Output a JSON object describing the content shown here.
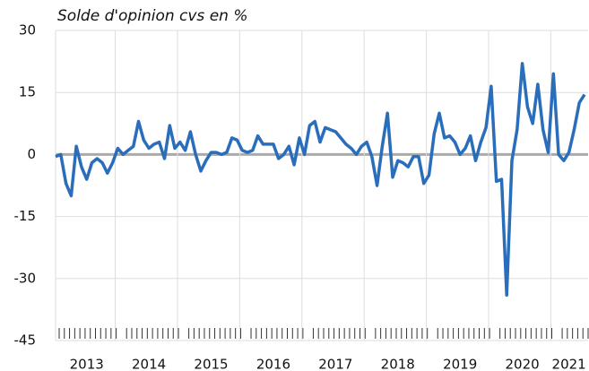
{
  "chart_data": {
    "type": "line",
    "title": "Solde d'opinion cvs en %",
    "categories": [
      null,
      null,
      null,
      null,
      null,
      null,
      "2013",
      null,
      null,
      null,
      null,
      null,
      null,
      null,
      null,
      null,
      null,
      null,
      "2014",
      null,
      null,
      null,
      null,
      null,
      null,
      null,
      null,
      null,
      null,
      null,
      "2015",
      null,
      null,
      null,
      null,
      null,
      null,
      null,
      null,
      null,
      null,
      null,
      "2016",
      null,
      null,
      null,
      null,
      null,
      null,
      null,
      null,
      null,
      null,
      null,
      "2017",
      null,
      null,
      null,
      null,
      null,
      null,
      null,
      null,
      null,
      null,
      null,
      "2018",
      null,
      null,
      null,
      null,
      null,
      null,
      null,
      null,
      null,
      null,
      null,
      "2019",
      null,
      null,
      null,
      null,
      null,
      null,
      null,
      null,
      null,
      null,
      null,
      "2020",
      null,
      null,
      null,
      null,
      null,
      null,
      null,
      null,
      "2021",
      null,
      null,
      null
    ],
    "series": [
      {
        "name": "Solde d'opinion",
        "color": "#2a6ebb",
        "values": [
          -0.5,
          0,
          -7,
          -10,
          2,
          -3,
          -6,
          -2,
          -1,
          -2,
          -4.5,
          -2,
          1.5,
          0,
          1,
          2,
          8,
          3.5,
          1.5,
          2.5,
          3,
          -1,
          7,
          1.5,
          3,
          1,
          5.5,
          0,
          -4,
          -1.5,
          0.5,
          0.5,
          0,
          0.5,
          4,
          3.5,
          1,
          0.5,
          1,
          4.5,
          2.5,
          2.5,
          2.5,
          -1,
          0,
          2,
          -2.5,
          4,
          0,
          7,
          8,
          3,
          6.5,
          6,
          5.5,
          4,
          2.5,
          1.5,
          0,
          2,
          3,
          -0.5,
          -7.5,
          2,
          10,
          -5.5,
          -1.5,
          -2,
          -3,
          -0.5,
          -0.5,
          -7,
          -5,
          5,
          10,
          4,
          4.5,
          3,
          0,
          1.5,
          4.5,
          -1.5,
          3,
          6.5,
          16.5,
          -6.5,
          -6,
          -34,
          -1.5,
          6,
          22,
          11.5,
          7.5,
          17,
          6,
          0.5,
          19.5,
          0,
          -1.5,
          0.5,
          6,
          12.5,
          14.5
        ]
      }
    ],
    "ylim": [
      -45,
      30
    ],
    "yticks": [
      -45,
      -30,
      -15,
      0,
      15,
      30
    ],
    "grid": true
  }
}
